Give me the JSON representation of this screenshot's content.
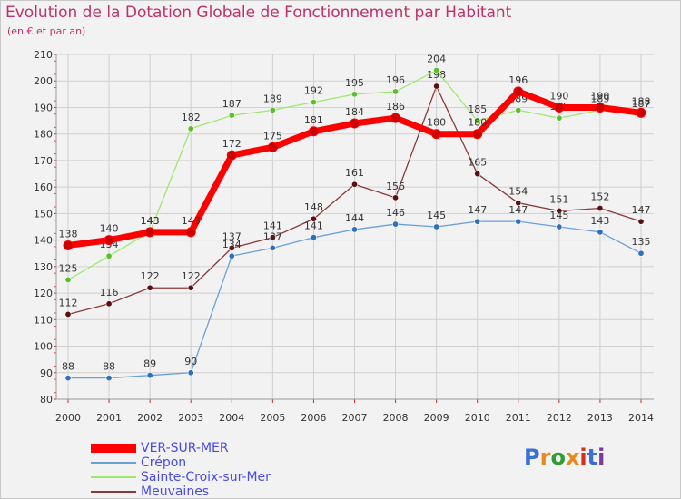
{
  "title": "Evolution de la Dotation Globale de Fonctionnement par Habitant",
  "subtitle": "(en € et par an)",
  "logo": {
    "text": "Proxiti",
    "colors": [
      "#3b6fd6",
      "#e58a1c",
      "#2e9c3a",
      "#e58a1c",
      "#d6301c",
      "#3b6fd6",
      "#7a3a9c"
    ]
  },
  "chart_data": {
    "type": "line",
    "title": "Evolution de la Dotation Globale de Fonctionnement par Habitant",
    "ylabel": "(en € et par an)",
    "xlabel": "",
    "x": [
      "2000",
      "2001",
      "2002",
      "2003",
      "2004",
      "2005",
      "2006",
      "2007",
      "2008",
      "2009",
      "2010",
      "2011",
      "2012",
      "2013",
      "2014"
    ],
    "yticks": [
      "80",
      "90",
      "100",
      "110",
      "120",
      "130",
      "140",
      "150",
      "160",
      "170",
      "180",
      "190",
      "200",
      "210"
    ],
    "ylim": [
      80,
      210
    ],
    "grid": true,
    "legend_position": "bottom-left",
    "series": [
      {
        "name": "Meuvaines",
        "color": "#8a3a3a",
        "marker": "#5a1010",
        "width": "thin",
        "values": [
          112,
          116,
          122,
          122,
          137,
          141,
          148,
          161,
          156,
          198,
          165,
          154,
          151,
          152,
          147
        ],
        "labels": [
          "112",
          "116",
          "122",
          "122",
          "137",
          "141",
          "148",
          "161",
          "156",
          "198",
          "165",
          "154",
          "151",
          "152",
          "147"
        ]
      },
      {
        "name": "Crépon",
        "color": "#6aa0d8",
        "marker": "#2f6fc0",
        "width": "thin",
        "values": [
          88,
          88,
          89,
          90,
          134,
          137,
          141,
          144,
          146,
          145,
          147,
          147,
          145,
          143,
          135
        ],
        "labels": [
          "88",
          "88",
          "89",
          "90",
          "134",
          "137",
          "141",
          "144",
          "146",
          "145",
          "147",
          "147",
          "145",
          "143",
          "135"
        ]
      },
      {
        "name": "Sainte-Croix-sur-Mer",
        "color": "#9ee870",
        "marker": "#5abf2a",
        "width": "thin",
        "values": [
          125,
          134,
          143,
          182,
          187,
          189,
          192,
          195,
          196,
          204,
          185,
          189,
          186,
          189,
          187
        ],
        "labels": [
          "125",
          "134",
          "143",
          "182",
          "187",
          "189",
          "192",
          "195",
          "196",
          "204",
          "185",
          "189",
          "186",
          "189",
          "187"
        ]
      },
      {
        "name": "VER-SUR-MER",
        "color": "#ff0000",
        "marker": "#cc0000",
        "width": "thick",
        "values": [
          138,
          140,
          143,
          143,
          172,
          175,
          181,
          184,
          186,
          180,
          180,
          196,
          190,
          190,
          188
        ],
        "labels": [
          "138",
          "140",
          "143",
          "143",
          "172",
          "175",
          "181",
          "184",
          "186",
          "180",
          "180",
          "196",
          "190",
          "190",
          "188"
        ]
      }
    ],
    "legend": [
      "VER-SUR-MER",
      "Crépon",
      "Sainte-Croix-sur-Mer",
      "Meuvaines"
    ]
  }
}
